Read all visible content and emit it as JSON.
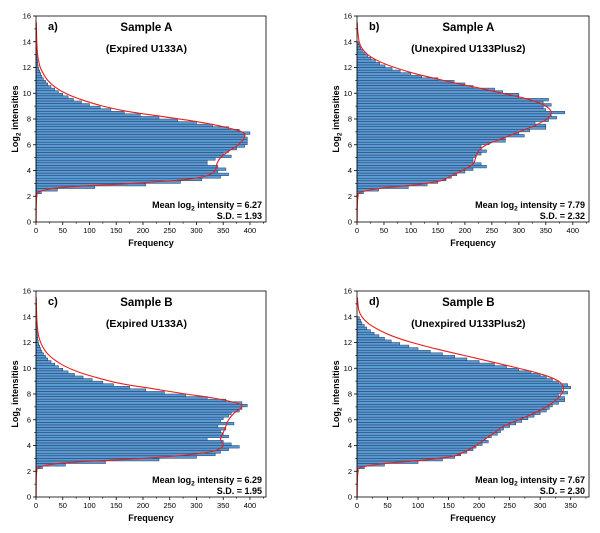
{
  "chart_data": [
    {
      "type": "bar",
      "orientation": "horizontal",
      "panel_label": "a)",
      "title": "Sample A",
      "subtitle": "(Expired U133A)",
      "xlabel": "Frequency",
      "ylabel_main": "Log",
      "ylabel_sub": "2",
      "ylabel_tail": " intensities",
      "xlim": [
        0,
        430
      ],
      "ylim": [
        0,
        16
      ],
      "xticks": [
        "0",
        "50",
        "100",
        "150",
        "200",
        "250",
        "300",
        "350",
        "400"
      ],
      "yticks": [
        "0",
        "2",
        "4",
        "6",
        "8",
        "10",
        "12",
        "14",
        "16"
      ],
      "stat_mean_prefix": "Mean log",
      "stat_mean_sub": "2",
      "stat_mean_suffix": " intensity = 6.27",
      "stat_sd": "S.D. = 1.93",
      "mean": 6.27,
      "sd": 1.93,
      "bin_width": 0.2,
      "bin_centers": [
        2.1,
        2.3,
        2.5,
        2.7,
        2.9,
        3.1,
        3.3,
        3.5,
        3.7,
        3.9,
        4.1,
        4.3,
        4.5,
        4.7,
        4.9,
        5.1,
        5.3,
        5.5,
        5.7,
        5.9,
        6.1,
        6.3,
        6.5,
        6.7,
        6.9,
        7.1,
        7.3,
        7.5,
        7.7,
        7.9,
        8.1,
        8.3,
        8.5,
        8.7,
        8.9,
        9.1,
        9.3,
        9.5,
        9.7,
        9.9,
        10.1,
        10.3,
        10.5,
        10.7,
        10.9,
        11.1,
        11.3,
        11.5,
        11.7,
        11.9,
        12.1,
        12.3,
        12.5,
        12.7,
        12.9,
        13.1,
        13.3,
        13.5
      ],
      "counts": [
        2,
        10,
        40,
        110,
        205,
        270,
        310,
        345,
        360,
        340,
        355,
        340,
        320,
        320,
        335,
        365,
        350,
        360,
        375,
        390,
        395,
        395,
        395,
        390,
        400,
        380,
        360,
        330,
        300,
        265,
        230,
        195,
        165,
        140,
        120,
        100,
        85,
        70,
        60,
        50,
        42,
        35,
        28,
        22,
        18,
        14,
        11,
        9,
        7,
        5,
        4,
        3,
        3,
        2,
        2,
        1,
        1,
        1
      ],
      "fit_knots": [
        [
          0,
          0.15
        ],
        [
          1.5,
          0.6
        ],
        [
          2.0,
          1.5
        ],
        [
          2.3,
          4
        ],
        [
          2.6,
          30
        ],
        [
          2.8,
          90
        ],
        [
          3.0,
          180
        ],
        [
          3.3,
          280
        ],
        [
          3.6,
          320
        ],
        [
          4.0,
          335
        ],
        [
          4.5,
          338
        ],
        [
          5.0,
          345
        ],
        [
          5.5,
          360
        ],
        [
          6.0,
          378
        ],
        [
          6.6,
          390
        ],
        [
          7.0,
          385
        ],
        [
          7.4,
          350
        ],
        [
          7.8,
          300
        ],
        [
          8.2,
          235
        ],
        [
          8.6,
          170
        ],
        [
          9.0,
          125
        ],
        [
          9.5,
          85
        ],
        [
          10.0,
          55
        ],
        [
          10.5,
          35
        ],
        [
          11.0,
          22
        ],
        [
          11.5,
          14
        ],
        [
          12.0,
          8
        ],
        [
          12.5,
          5
        ],
        [
          13.0,
          3
        ],
        [
          14.0,
          1.5
        ],
        [
          15.5,
          0.5
        ]
      ]
    },
    {
      "type": "bar",
      "orientation": "horizontal",
      "panel_label": "b)",
      "title": "Sample A",
      "subtitle": "(Unexpired U133Plus2)",
      "xlabel": "Frequency",
      "ylabel_main": "Log",
      "ylabel_sub": "2",
      "ylabel_tail": " intensities",
      "xlim": [
        0,
        430
      ],
      "ylim": [
        0,
        16
      ],
      "xticks": [
        "0",
        "50",
        "100",
        "150",
        "200",
        "250",
        "300",
        "350",
        "400"
      ],
      "yticks": [
        "0",
        "2",
        "4",
        "6",
        "8",
        "10",
        "12",
        "14",
        "16"
      ],
      "stat_mean_prefix": "Mean log",
      "stat_mean_sub": "2",
      "stat_mean_suffix": " intensity = 7.79",
      "stat_sd": "S.D. = 2.32",
      "mean": 7.79,
      "sd": 2.32,
      "bin_width": 0.2,
      "bin_centers": [
        2.1,
        2.3,
        2.5,
        2.7,
        2.9,
        3.1,
        3.3,
        3.5,
        3.7,
        3.9,
        4.1,
        4.3,
        4.5,
        4.7,
        4.9,
        5.1,
        5.3,
        5.5,
        5.7,
        5.9,
        6.1,
        6.3,
        6.5,
        6.7,
        6.9,
        7.1,
        7.3,
        7.5,
        7.7,
        7.9,
        8.1,
        8.3,
        8.5,
        8.7,
        8.9,
        9.1,
        9.3,
        9.5,
        9.7,
        9.9,
        10.1,
        10.3,
        10.5,
        10.7,
        10.9,
        11.1,
        11.3,
        11.5,
        11.7,
        11.9,
        12.1,
        12.3,
        12.5,
        12.7,
        12.9,
        13.1,
        13.3,
        13.5,
        13.7,
        13.9
      ],
      "counts": [
        2,
        12,
        40,
        95,
        130,
        150,
        165,
        175,
        185,
        200,
        215,
        240,
        230,
        215,
        215,
        220,
        230,
        240,
        230,
        230,
        245,
        275,
        275,
        310,
        300,
        320,
        350,
        350,
        330,
        355,
        370,
        360,
        385,
        350,
        345,
        360,
        345,
        355,
        300,
        300,
        270,
        255,
        215,
        200,
        180,
        150,
        120,
        100,
        80,
        65,
        52,
        42,
        34,
        26,
        20,
        15,
        10,
        7,
        5,
        3
      ],
      "fit_knots": [
        [
          0,
          0.2
        ],
        [
          1.5,
          0.8
        ],
        [
          2.0,
          2
        ],
        [
          2.3,
          6
        ],
        [
          2.6,
          40
        ],
        [
          2.9,
          110
        ],
        [
          3.2,
          155
        ],
        [
          3.6,
          175
        ],
        [
          4.0,
          195
        ],
        [
          4.5,
          215
        ],
        [
          5.0,
          220
        ],
        [
          5.5,
          225
        ],
        [
          6.0,
          240
        ],
        [
          6.5,
          270
        ],
        [
          7.0,
          300
        ],
        [
          7.5,
          330
        ],
        [
          8.0,
          352
        ],
        [
          8.5,
          360
        ],
        [
          9.0,
          350
        ],
        [
          9.5,
          320
        ],
        [
          10.0,
          270
        ],
        [
          10.5,
          215
        ],
        [
          11.0,
          160
        ],
        [
          11.5,
          110
        ],
        [
          12.0,
          70
        ],
        [
          12.5,
          40
        ],
        [
          13.0,
          20
        ],
        [
          13.5,
          9
        ],
        [
          14.0,
          4
        ],
        [
          15.0,
          1
        ],
        [
          15.5,
          0.5
        ]
      ]
    },
    {
      "type": "bar",
      "orientation": "horizontal",
      "panel_label": "c)",
      "title": "Sample B",
      "subtitle": "(Expired U133A)",
      "xlabel": "Frequency",
      "ylabel_main": "Log",
      "ylabel_sub": "2",
      "ylabel_tail": " intensities",
      "xlim": [
        0,
        430
      ],
      "ylim": [
        0,
        16
      ],
      "xticks": [
        "0",
        "50",
        "100",
        "150",
        "200",
        "250",
        "300",
        "350",
        "400"
      ],
      "yticks": [
        "0",
        "2",
        "4",
        "6",
        "8",
        "10",
        "12",
        "14",
        "16"
      ],
      "stat_mean_prefix": "Mean log",
      "stat_mean_sub": "2",
      "stat_mean_suffix": " intensity = 6.29",
      "stat_sd": "S.D. = 1.95",
      "mean": 6.29,
      "sd": 1.95,
      "bin_width": 0.2,
      "bin_centers": [
        2.1,
        2.3,
        2.5,
        2.7,
        2.9,
        3.1,
        3.3,
        3.5,
        3.7,
        3.9,
        4.1,
        4.3,
        4.5,
        4.7,
        4.9,
        5.1,
        5.3,
        5.5,
        5.7,
        5.9,
        6.1,
        6.3,
        6.5,
        6.7,
        6.9,
        7.1,
        7.3,
        7.5,
        7.7,
        7.9,
        8.1,
        8.3,
        8.5,
        8.7,
        8.9,
        9.1,
        9.3,
        9.5,
        9.7,
        9.9,
        10.1,
        10.3,
        10.5,
        10.7,
        10.9,
        11.1,
        11.3,
        11.5,
        11.7,
        11.9,
        12.1,
        12.3,
        12.5,
        12.7,
        12.9,
        13.1,
        13.3,
        13.5
      ],
      "counts": [
        2,
        12,
        55,
        130,
        230,
        300,
        335,
        345,
        360,
        380,
        365,
        350,
        320,
        360,
        350,
        345,
        355,
        340,
        370,
        345,
        350,
        360,
        365,
        380,
        385,
        395,
        385,
        355,
        320,
        280,
        240,
        205,
        175,
        145,
        125,
        105,
        88,
        72,
        60,
        50,
        42,
        35,
        28,
        22,
        18,
        14,
        11,
        9,
        7,
        5,
        4,
        3,
        3,
        2,
        2,
        1,
        1,
        1
      ],
      "fit_knots": [
        [
          0,
          0.15
        ],
        [
          1.5,
          0.6
        ],
        [
          2.0,
          1.5
        ],
        [
          2.3,
          5
        ],
        [
          2.6,
          40
        ],
        [
          2.8,
          110
        ],
        [
          3.0,
          200
        ],
        [
          3.3,
          290
        ],
        [
          3.6,
          335
        ],
        [
          4.0,
          350
        ],
        [
          4.5,
          345
        ],
        [
          5.0,
          350
        ],
        [
          5.5,
          355
        ],
        [
          6.0,
          360
        ],
        [
          6.5,
          370
        ],
        [
          7.0,
          385
        ],
        [
          7.3,
          375
        ],
        [
          7.7,
          330
        ],
        [
          8.0,
          280
        ],
        [
          8.4,
          220
        ],
        [
          8.8,
          160
        ],
        [
          9.2,
          120
        ],
        [
          9.7,
          80
        ],
        [
          10.2,
          52
        ],
        [
          10.7,
          33
        ],
        [
          11.2,
          20
        ],
        [
          11.7,
          12
        ],
        [
          12.2,
          7
        ],
        [
          12.7,
          4
        ],
        [
          13.5,
          2
        ],
        [
          14.5,
          1
        ],
        [
          15.5,
          0.4
        ]
      ]
    },
    {
      "type": "bar",
      "orientation": "horizontal",
      "panel_label": "d)",
      "title": "Sample B",
      "subtitle": "(Unexpired U133Plus2)",
      "xlabel": "Frequency",
      "ylabel_main": "Log",
      "ylabel_sub": "2",
      "ylabel_tail": " intensities",
      "xlim": [
        0,
        380
      ],
      "ylim": [
        0,
        16
      ],
      "xticks": [
        "0",
        "50",
        "100",
        "150",
        "200",
        "250",
        "300",
        "350"
      ],
      "yticks": [
        "0",
        "2",
        "4",
        "6",
        "8",
        "10",
        "12",
        "14",
        "16"
      ],
      "stat_mean_prefix": "Mean log",
      "stat_mean_sub": "2",
      "stat_mean_suffix": " intensity = 7.67",
      "stat_sd": "S.D. = 2.30",
      "mean": 7.67,
      "sd": 2.3,
      "bin_width": 0.2,
      "bin_centers": [
        2.1,
        2.3,
        2.5,
        2.7,
        2.9,
        3.1,
        3.3,
        3.5,
        3.7,
        3.9,
        4.1,
        4.3,
        4.5,
        4.7,
        4.9,
        5.1,
        5.3,
        5.5,
        5.7,
        5.9,
        6.1,
        6.3,
        6.5,
        6.7,
        6.9,
        7.1,
        7.3,
        7.5,
        7.7,
        7.9,
        8.1,
        8.3,
        8.5,
        8.7,
        8.9,
        9.1,
        9.3,
        9.5,
        9.7,
        9.9,
        10.1,
        10.3,
        10.5,
        10.7,
        10.9,
        11.1,
        11.3,
        11.5,
        11.7,
        11.9,
        12.1,
        12.3,
        12.5,
        12.7,
        12.9,
        13.1,
        13.3,
        13.5,
        13.7,
        13.9
      ],
      "counts": [
        2,
        12,
        45,
        100,
        140,
        160,
        170,
        180,
        190,
        195,
        205,
        215,
        210,
        220,
        230,
        235,
        240,
        250,
        260,
        270,
        280,
        290,
        300,
        310,
        315,
        320,
        330,
        340,
        340,
        330,
        345,
        335,
        350,
        345,
        330,
        320,
        310,
        300,
        285,
        265,
        245,
        225,
        200,
        180,
        160,
        140,
        120,
        100,
        85,
        70,
        56,
        45,
        36,
        28,
        22,
        16,
        12,
        8,
        6,
        4
      ],
      "fit_knots": [
        [
          0,
          0.2
        ],
        [
          1.5,
          0.8
        ],
        [
          2.0,
          2
        ],
        [
          2.3,
          6
        ],
        [
          2.6,
          45
        ],
        [
          2.9,
          115
        ],
        [
          3.2,
          160
        ],
        [
          3.6,
          180
        ],
        [
          4.0,
          195
        ],
        [
          4.5,
          210
        ],
        [
          5.0,
          225
        ],
        [
          5.5,
          240
        ],
        [
          6.0,
          265
        ],
        [
          6.5,
          290
        ],
        [
          7.0,
          310
        ],
        [
          7.5,
          325
        ],
        [
          8.0,
          335
        ],
        [
          8.5,
          338
        ],
        [
          9.0,
          330
        ],
        [
          9.5,
          305
        ],
        [
          10.0,
          265
        ],
        [
          10.5,
          220
        ],
        [
          11.0,
          175
        ],
        [
          11.5,
          130
        ],
        [
          12.0,
          90
        ],
        [
          12.5,
          58
        ],
        [
          13.0,
          35
        ],
        [
          13.5,
          18
        ],
        [
          14.0,
          8
        ],
        [
          14.5,
          3
        ],
        [
          15.5,
          0.5
        ]
      ]
    }
  ]
}
